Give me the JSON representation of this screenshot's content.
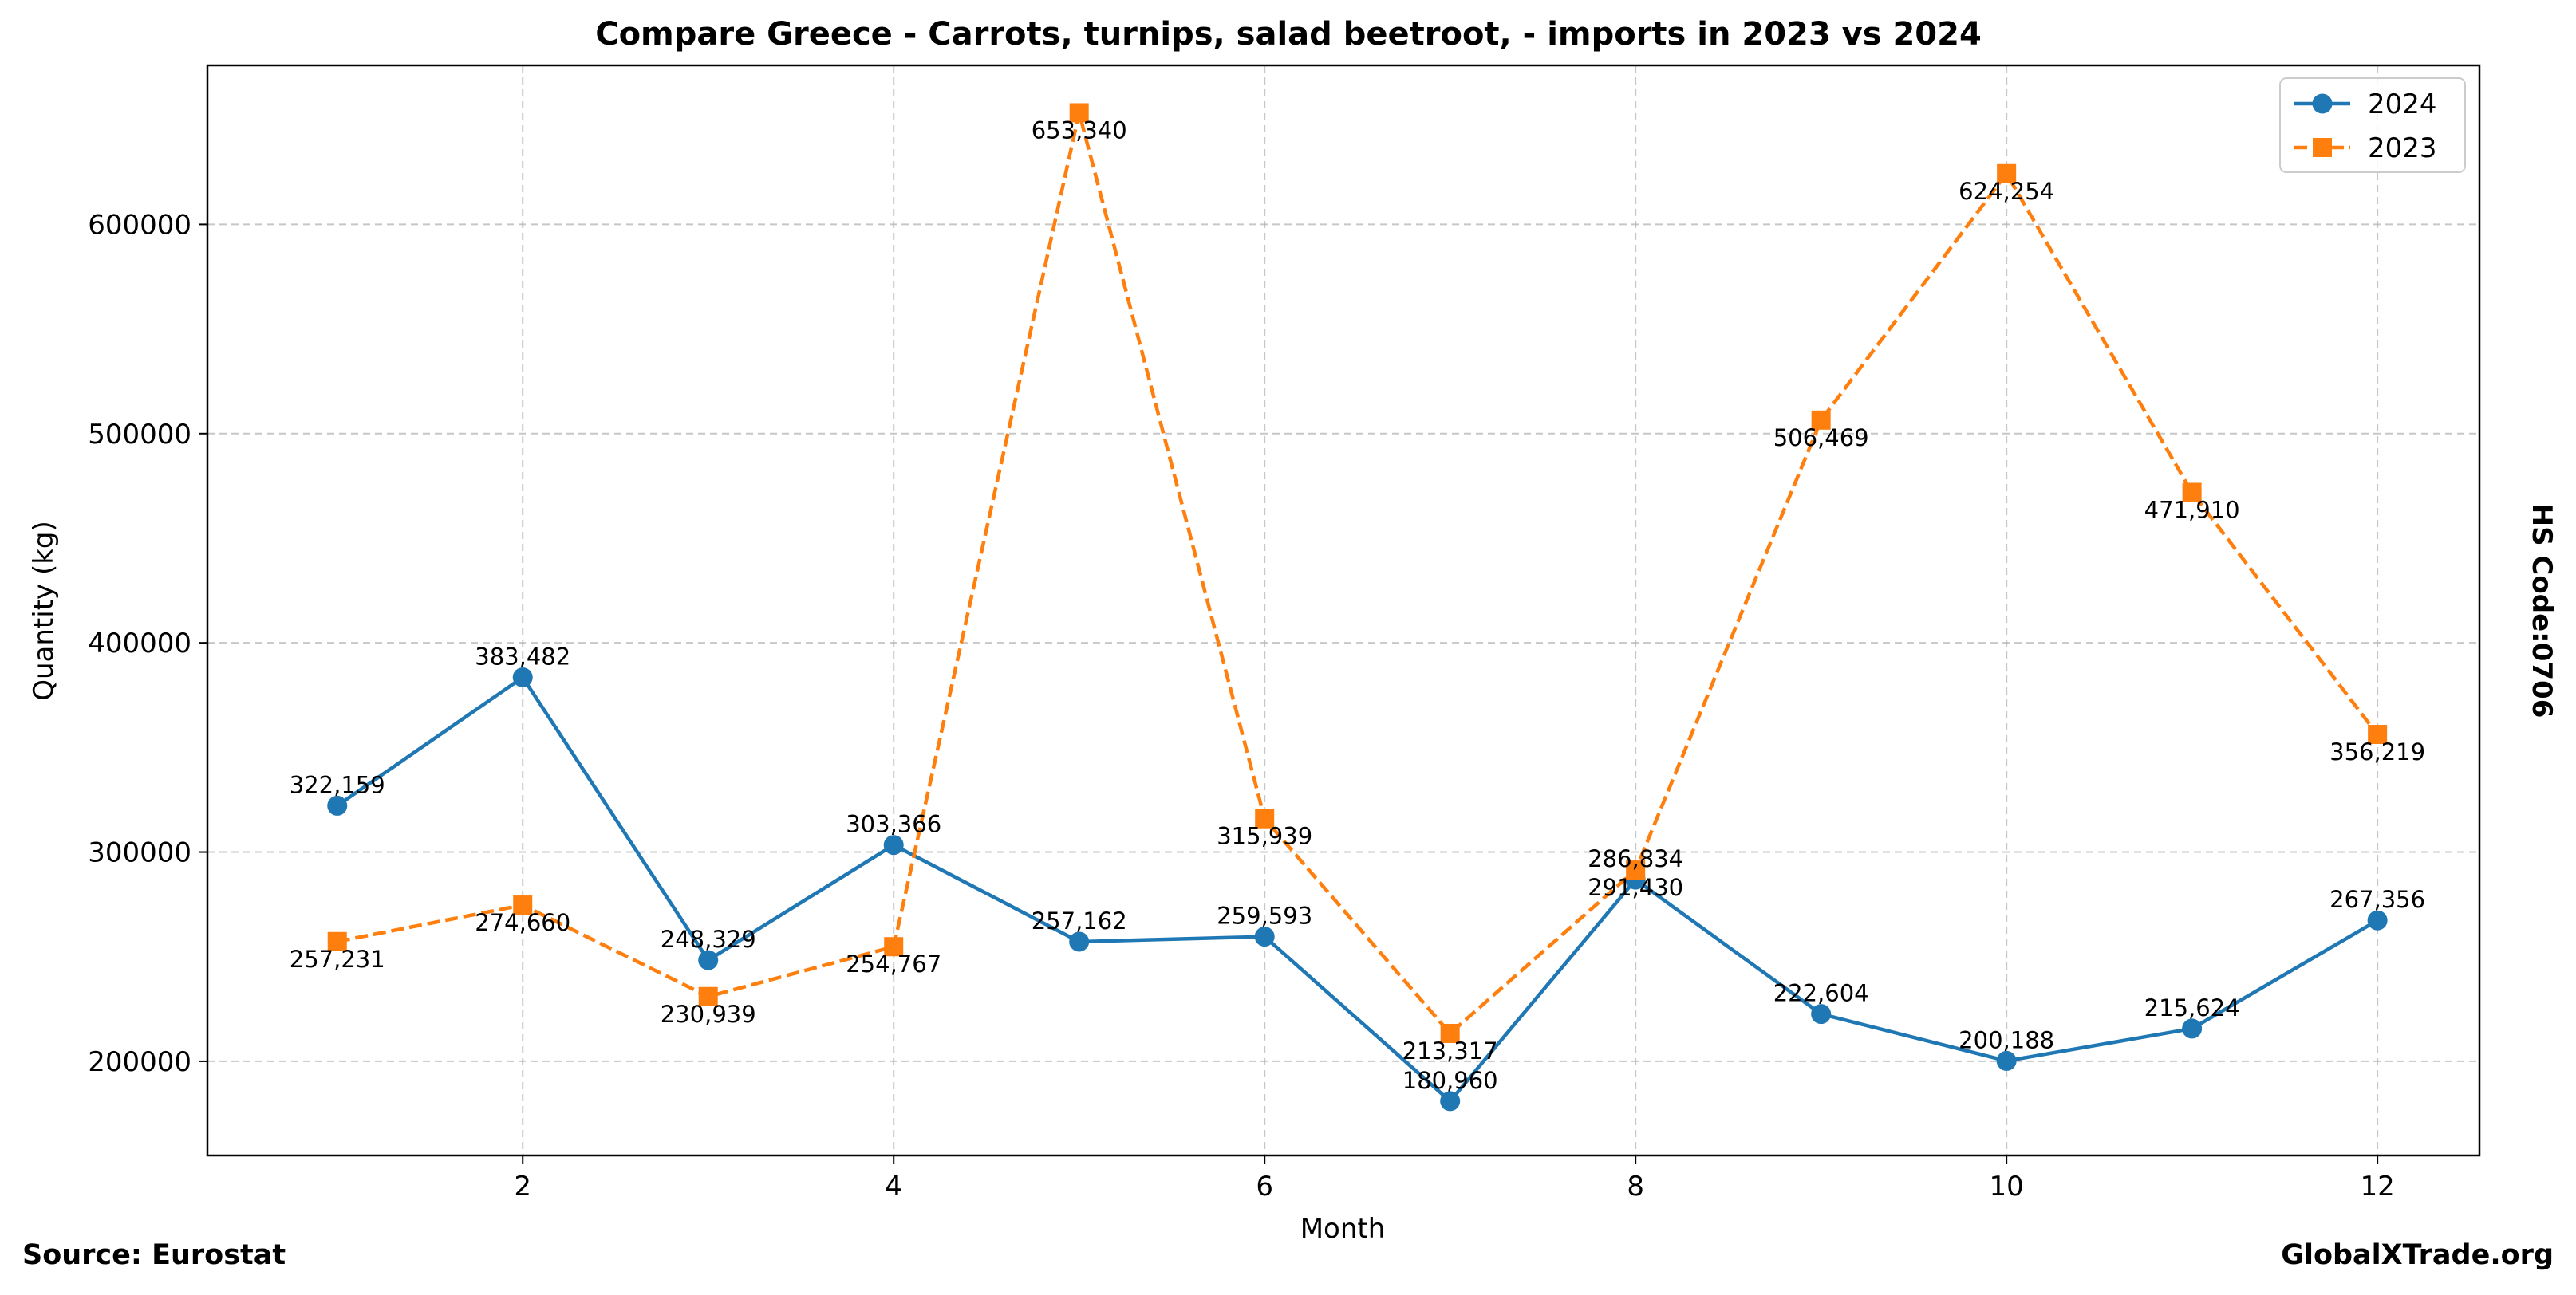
{
  "chart_data": {
    "type": "line",
    "title": "Compare Greece - Carrots, turnips, salad beetroot, - imports in 2023 vs 2024",
    "xlabel": "Month",
    "ylabel": "Quantity (kg)",
    "side_label": "HS Code:0706",
    "xlim": [
      0.3,
      12.55
    ],
    "ylim": [
      155000,
      676000
    ],
    "xticks": [
      2,
      4,
      6,
      8,
      10,
      12
    ],
    "yticks": [
      200000,
      300000,
      400000,
      500000,
      600000
    ],
    "grid": true,
    "legend_position": "top-right",
    "x": [
      1,
      2,
      3,
      4,
      5,
      6,
      7,
      8,
      9,
      10,
      11,
      12
    ],
    "series": [
      {
        "name": "2024",
        "color": "#1f77b4",
        "marker": "circle",
        "line_style": "solid",
        "values": [
          322159,
          383482,
          248329,
          303366,
          257162,
          259593,
          180960,
          286834,
          222604,
          200188,
          215624,
          267356
        ],
        "labels": [
          "322,159",
          "383,482",
          "248,329",
          "303,366",
          "257,162",
          "259,593",
          "180,960",
          "286,834",
          "222,604",
          "200,188",
          "215,624",
          "267,356"
        ]
      },
      {
        "name": "2023",
        "color": "#ff7f0e",
        "marker": "square",
        "line_style": "dashed",
        "values": [
          257231,
          274660,
          230939,
          254767,
          653340,
          315939,
          213317,
          291430,
          506469,
          624254,
          471910,
          356219
        ],
        "labels": [
          "257,231",
          "274,660",
          "230,939",
          "254,767",
          "653,340",
          "315,939",
          "213,317",
          "291,430",
          "506,469",
          "624,254",
          "471,910",
          "356,219"
        ]
      }
    ]
  },
  "footer": {
    "source": "Source: Eurostat",
    "brand": "GlobalXTrade.org"
  }
}
